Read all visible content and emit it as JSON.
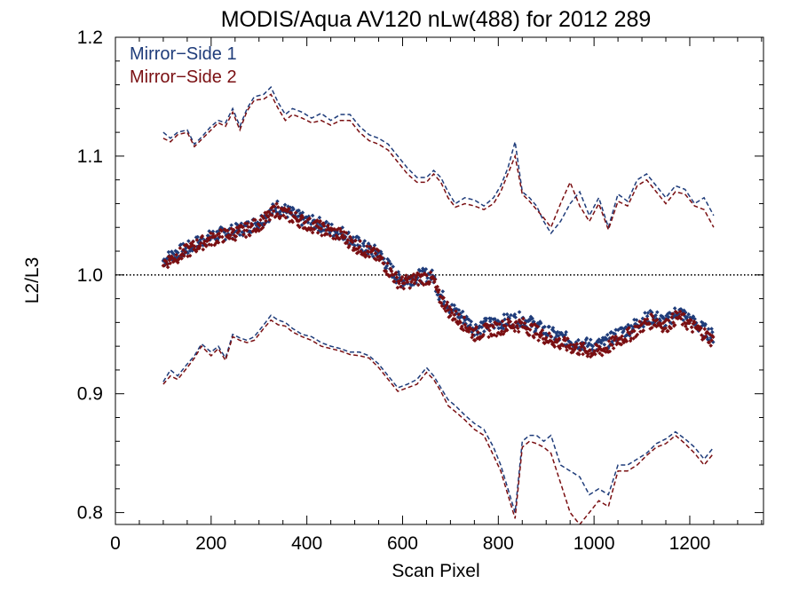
{
  "chart_data": {
    "type": "scatter",
    "title": "MODIS/Aqua AV120 nLw(488) for 2012 289",
    "xlabel": "Scan Pixel",
    "ylabel": "L2/L3",
    "xlim": [
      0,
      1354
    ],
    "ylim": [
      0.79,
      1.2
    ],
    "xticks": [
      0,
      200,
      400,
      600,
      800,
      1000,
      1200
    ],
    "xtick_labels": [
      "0",
      "200",
      "400",
      "600",
      "800",
      "1000",
      "1200"
    ],
    "yticks": [
      0.8,
      0.9,
      1.0,
      1.1,
      1.2
    ],
    "ytick_labels": [
      "0.8",
      "0.9",
      "1.0",
      "1.1",
      "1.2"
    ],
    "reference_line": {
      "y": 1.0,
      "style": "dotted"
    },
    "legend": {
      "placement": "top-left"
    },
    "series": [
      {
        "name": "Mirror−Side 1",
        "color": "#1f3c7a",
        "marker": "diamond",
        "x": [
          100,
          125,
          150,
          175,
          200,
          225,
          250,
          275,
          300,
          325,
          335,
          350,
          375,
          400,
          425,
          450,
          475,
          500,
          525,
          550,
          575,
          590,
          600,
          625,
          650,
          665,
          675,
          690,
          700,
          725,
          750,
          775,
          800,
          825,
          850,
          875,
          900,
          925,
          950,
          975,
          1000,
          1025,
          1050,
          1075,
          1100,
          1125,
          1150,
          1175,
          1200,
          1225,
          1250
        ],
        "y": [
          1.012,
          1.018,
          1.022,
          1.028,
          1.032,
          1.035,
          1.037,
          1.04,
          1.045,
          1.052,
          1.058,
          1.055,
          1.05,
          1.045,
          1.043,
          1.038,
          1.035,
          1.028,
          1.022,
          1.018,
          1.005,
          0.997,
          0.995,
          0.998,
          1.0,
          0.998,
          0.985,
          0.978,
          0.972,
          0.965,
          0.955,
          0.958,
          0.96,
          0.962,
          0.963,
          0.958,
          0.952,
          0.948,
          0.945,
          0.942,
          0.94,
          0.943,
          0.95,
          0.955,
          0.962,
          0.965,
          0.96,
          0.97,
          0.962,
          0.955,
          0.948
        ],
        "upper_dashed": {
          "x": [
            100,
            115,
            130,
            150,
            165,
            180,
            200,
            215,
            230,
            245,
            260,
            275,
            290,
            310,
            325,
            340,
            355,
            370,
            390,
            410,
            430,
            450,
            470,
            490,
            510,
            530,
            550,
            570,
            590,
            610,
            630,
            650,
            665,
            680,
            695,
            710,
            730,
            750,
            770,
            790,
            805,
            820,
            835,
            850,
            865,
            880,
            895,
            910,
            930,
            950,
            970,
            990,
            1010,
            1030,
            1050,
            1070,
            1090,
            1110,
            1130,
            1150,
            1170,
            1190,
            1210,
            1230,
            1250
          ],
          "y": [
            1.12,
            1.115,
            1.12,
            1.122,
            1.11,
            1.116,
            1.125,
            1.13,
            1.128,
            1.14,
            1.125,
            1.14,
            1.15,
            1.152,
            1.158,
            1.145,
            1.135,
            1.14,
            1.137,
            1.132,
            1.136,
            1.13,
            1.135,
            1.135,
            1.125,
            1.118,
            1.115,
            1.11,
            1.1,
            1.09,
            1.082,
            1.082,
            1.088,
            1.082,
            1.07,
            1.06,
            1.065,
            1.063,
            1.058,
            1.065,
            1.075,
            1.09,
            1.112,
            1.07,
            1.065,
            1.058,
            1.045,
            1.035,
            1.045,
            1.06,
            1.07,
            1.05,
            1.065,
            1.04,
            1.068,
            1.062,
            1.08,
            1.085,
            1.075,
            1.065,
            1.075,
            1.072,
            1.06,
            1.065,
            1.05
          ]
        },
        "lower_dashed": {
          "x": [
            100,
            115,
            130,
            150,
            165,
            180,
            200,
            215,
            230,
            245,
            260,
            275,
            290,
            310,
            325,
            340,
            355,
            370,
            390,
            410,
            430,
            450,
            470,
            490,
            510,
            530,
            550,
            570,
            590,
            610,
            630,
            650,
            665,
            680,
            695,
            710,
            730,
            750,
            770,
            790,
            805,
            820,
            835,
            850,
            865,
            880,
            895,
            910,
            930,
            950,
            970,
            990,
            1010,
            1030,
            1050,
            1070,
            1090,
            1110,
            1130,
            1150,
            1170,
            1190,
            1210,
            1230,
            1250
          ],
          "y": [
            0.91,
            0.92,
            0.915,
            0.925,
            0.932,
            0.942,
            0.935,
            0.94,
            0.93,
            0.95,
            0.947,
            0.945,
            0.948,
            0.958,
            0.966,
            0.962,
            0.96,
            0.955,
            0.95,
            0.948,
            0.943,
            0.94,
            0.938,
            0.935,
            0.935,
            0.932,
            0.925,
            0.915,
            0.905,
            0.908,
            0.912,
            0.922,
            0.915,
            0.905,
            0.895,
            0.89,
            0.882,
            0.875,
            0.87,
            0.855,
            0.84,
            0.82,
            0.8,
            0.86,
            0.865,
            0.865,
            0.86,
            0.865,
            0.84,
            0.835,
            0.83,
            0.815,
            0.82,
            0.815,
            0.84,
            0.84,
            0.845,
            0.85,
            0.858,
            0.862,
            0.868,
            0.862,
            0.855,
            0.845,
            0.855
          ]
        }
      },
      {
        "name": "Mirror−Side 2",
        "color": "#7a0f12",
        "marker": "diamond",
        "x": [
          100,
          125,
          150,
          175,
          200,
          225,
          250,
          275,
          300,
          325,
          335,
          350,
          375,
          400,
          425,
          450,
          475,
          500,
          525,
          550,
          575,
          590,
          600,
          625,
          650,
          665,
          675,
          690,
          700,
          725,
          750,
          775,
          800,
          825,
          850,
          875,
          900,
          925,
          950,
          975,
          1000,
          1025,
          1050,
          1075,
          1100,
          1125,
          1150,
          1175,
          1200,
          1225,
          1250
        ],
        "y": [
          1.01,
          1.015,
          1.02,
          1.026,
          1.03,
          1.033,
          1.035,
          1.038,
          1.043,
          1.05,
          1.055,
          1.052,
          1.048,
          1.043,
          1.04,
          1.036,
          1.033,
          1.025,
          1.02,
          1.015,
          1.002,
          0.995,
          0.993,
          0.996,
          0.998,
          0.995,
          0.982,
          0.975,
          0.968,
          0.96,
          0.95,
          0.953,
          0.955,
          0.958,
          0.958,
          0.953,
          0.947,
          0.943,
          0.94,
          0.937,
          0.935,
          0.938,
          0.945,
          0.95,
          0.957,
          0.962,
          0.957,
          0.965,
          0.958,
          0.952,
          0.944
        ],
        "upper_dashed": {
          "x": [
            100,
            115,
            130,
            150,
            165,
            180,
            200,
            215,
            230,
            245,
            260,
            275,
            290,
            310,
            325,
            340,
            355,
            370,
            390,
            410,
            430,
            450,
            470,
            490,
            510,
            530,
            550,
            570,
            590,
            610,
            630,
            650,
            665,
            680,
            695,
            710,
            730,
            750,
            770,
            790,
            805,
            820,
            835,
            850,
            865,
            880,
            895,
            910,
            930,
            950,
            970,
            990,
            1010,
            1030,
            1050,
            1070,
            1090,
            1110,
            1130,
            1150,
            1170,
            1190,
            1210,
            1230,
            1250
          ],
          "y": [
            1.115,
            1.112,
            1.118,
            1.12,
            1.108,
            1.114,
            1.122,
            1.128,
            1.125,
            1.137,
            1.122,
            1.138,
            1.147,
            1.148,
            1.152,
            1.14,
            1.13,
            1.135,
            1.132,
            1.128,
            1.13,
            1.126,
            1.13,
            1.13,
            1.12,
            1.113,
            1.11,
            1.105,
            1.095,
            1.085,
            1.078,
            1.078,
            1.085,
            1.078,
            1.065,
            1.057,
            1.06,
            1.058,
            1.055,
            1.06,
            1.07,
            1.085,
            1.1,
            1.068,
            1.062,
            1.055,
            1.048,
            1.04,
            1.06,
            1.078,
            1.058,
            1.045,
            1.06,
            1.038,
            1.062,
            1.058,
            1.075,
            1.08,
            1.07,
            1.06,
            1.07,
            1.068,
            1.058,
            1.055,
            1.04
          ]
        },
        "lower_dashed": {
          "x": [
            100,
            115,
            130,
            150,
            165,
            180,
            200,
            215,
            230,
            245,
            260,
            275,
            290,
            310,
            325,
            340,
            355,
            370,
            390,
            410,
            430,
            450,
            470,
            490,
            510,
            530,
            550,
            570,
            590,
            610,
            630,
            650,
            665,
            680,
            695,
            710,
            730,
            750,
            770,
            790,
            805,
            820,
            835,
            850,
            865,
            880,
            895,
            910,
            930,
            950,
            970,
            990,
            1010,
            1030,
            1050,
            1070,
            1090,
            1110,
            1130,
            1150,
            1170,
            1190,
            1210,
            1230,
            1250
          ],
          "y": [
            0.908,
            0.915,
            0.912,
            0.922,
            0.93,
            0.94,
            0.932,
            0.938,
            0.928,
            0.948,
            0.945,
            0.943,
            0.945,
            0.955,
            0.962,
            0.958,
            0.957,
            0.952,
            0.948,
            0.945,
            0.94,
            0.938,
            0.936,
            0.933,
            0.932,
            0.93,
            0.922,
            0.912,
            0.902,
            0.905,
            0.908,
            0.918,
            0.912,
            0.902,
            0.89,
            0.885,
            0.878,
            0.87,
            0.865,
            0.848,
            0.835,
            0.815,
            0.795,
            0.855,
            0.86,
            0.858,
            0.855,
            0.85,
            0.825,
            0.8,
            0.79,
            0.8,
            0.81,
            0.805,
            0.835,
            0.835,
            0.84,
            0.848,
            0.855,
            0.858,
            0.865,
            0.858,
            0.85,
            0.84,
            0.85
          ]
        }
      }
    ]
  }
}
